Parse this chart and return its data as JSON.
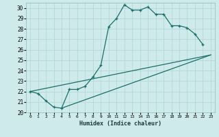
{
  "xlabel": "Humidex (Indice chaleur)",
  "bg_color": "#ceeaea",
  "line_color": "#1a6e6a",
  "grid_color": "#b0d4d4",
  "xlim": [
    -0.5,
    23.5
  ],
  "ylim": [
    20,
    30.5
  ],
  "xticks": [
    0,
    1,
    2,
    3,
    4,
    5,
    6,
    7,
    8,
    9,
    10,
    11,
    12,
    13,
    14,
    15,
    16,
    17,
    18,
    19,
    20,
    21,
    22,
    23
  ],
  "yticks": [
    20,
    21,
    22,
    23,
    24,
    25,
    26,
    27,
    28,
    29,
    30
  ],
  "line1_x": [
    0,
    1,
    2,
    3,
    4,
    5,
    6,
    7,
    8,
    9,
    10,
    11,
    12,
    13,
    14,
    15,
    16,
    17,
    18,
    19,
    20,
    21,
    22
  ],
  "line1_y": [
    22.0,
    21.8,
    21.1,
    20.5,
    20.4,
    22.2,
    22.2,
    22.5,
    23.4,
    24.5,
    28.2,
    29.0,
    30.3,
    29.8,
    29.8,
    30.1,
    29.4,
    29.4,
    28.3,
    28.3,
    28.1,
    27.5,
    26.5
  ],
  "line2_x": [
    0,
    23
  ],
  "line2_y": [
    22.0,
    25.5
  ],
  "line3_x": [
    4,
    23
  ],
  "line3_y": [
    20.4,
    25.5
  ]
}
